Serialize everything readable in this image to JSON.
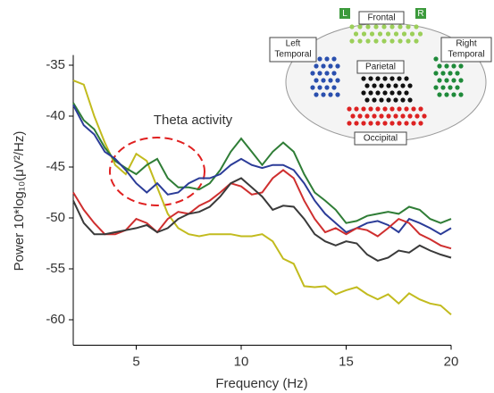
{
  "chart_data": {
    "type": "line",
    "xlabel": "Frequency (Hz)",
    "ylabel": "Power 10*log₁₀(μV²/Hz)",
    "annotation": "Theta activity",
    "x": [
      2,
      2.5,
      3,
      3.5,
      4,
      4.5,
      5,
      5.5,
      6,
      6.5,
      7,
      7.5,
      8,
      8.5,
      9,
      9.5,
      10,
      10.5,
      11,
      11.5,
      12,
      12.5,
      13,
      13.5,
      14,
      14.5,
      15,
      15.5,
      16,
      16.5,
      17,
      17.5,
      18,
      18.5,
      19,
      19.5,
      20
    ],
    "xlim": [
      2,
      20
    ],
    "xticks": [
      5,
      10,
      15,
      20
    ],
    "ylim": [
      -62.5,
      -34
    ],
    "yticks": [
      -35,
      -40,
      -45,
      -50,
      -55,
      -60
    ],
    "series": [
      {
        "color": "#c2bb1e",
        "values": [
          -36.5,
          -36.9,
          -40,
          -42.6,
          -44.8,
          -45.7,
          -43.7,
          -44.4,
          -47,
          -49.6,
          -51,
          -51.6,
          -51.8,
          -51.6,
          -51.6,
          -51.6,
          -51.8,
          -51.8,
          -51.6,
          -52.3,
          -54,
          -54.5,
          -56.7,
          -56.8,
          -56.7,
          -57.5,
          -57.1,
          -56.8,
          -57.5,
          -58,
          -57.5,
          -58.4,
          -57.4,
          -58,
          -58.4,
          -58.6,
          -59.5
        ]
      },
      {
        "color": "#2f7d36",
        "values": [
          -38.7,
          -40.4,
          -41.3,
          -43.1,
          -44.4,
          -45.1,
          -45.7,
          -44.8,
          -44.2,
          -46.1,
          -47,
          -47,
          -47.2,
          -46.6,
          -45.3,
          -43.5,
          -42.2,
          -43.5,
          -44.8,
          -43.5,
          -42.6,
          -43.5,
          -45.7,
          -47.5,
          -48.3,
          -49.2,
          -50.5,
          -50.3,
          -49.8,
          -49.6,
          -49.4,
          -49.6,
          -48.9,
          -49.2,
          -50.1,
          -50.5,
          -50.1
        ]
      },
      {
        "color": "#2b3c98",
        "values": [
          -38.9,
          -40.9,
          -41.8,
          -43.5,
          -44.2,
          -45.3,
          -46.6,
          -47.5,
          -46.6,
          -47.7,
          -47.5,
          -46.6,
          -46.1,
          -46.1,
          -45.7,
          -44.8,
          -44.2,
          -44.8,
          -45.1,
          -44.8,
          -44.8,
          -45.3,
          -46.6,
          -48.3,
          -49.6,
          -50.5,
          -51.4,
          -51,
          -50.5,
          -50.3,
          -50.7,
          -51.4,
          -50.1,
          -50.5,
          -51,
          -51.6,
          -51
        ]
      },
      {
        "color": "#cf2f2f",
        "values": [
          -47.5,
          -49.2,
          -50.5,
          -51.6,
          -51.6,
          -51.2,
          -50.1,
          -50.5,
          -51.4,
          -50.1,
          -49.4,
          -49.6,
          -48.8,
          -48.3,
          -47.5,
          -46.6,
          -46.9,
          -47.7,
          -47.5,
          -46.1,
          -45.3,
          -46.1,
          -48.3,
          -50.1,
          -51.4,
          -51,
          -51.6,
          -51,
          -51.2,
          -51.8,
          -51,
          -50.1,
          -50.5,
          -51.6,
          -52.1,
          -52.7,
          -53
        ]
      },
      {
        "color": "#3a3a3a",
        "values": [
          -48.3,
          -50.5,
          -51.6,
          -51.6,
          -51.4,
          -51.2,
          -51,
          -50.7,
          -51.4,
          -51,
          -50.1,
          -49.6,
          -49.4,
          -48.9,
          -47.9,
          -46.6,
          -46.1,
          -47,
          -47.9,
          -49.2,
          -48.8,
          -48.9,
          -50.1,
          -51.6,
          -52.3,
          -52.7,
          -52.3,
          -52.5,
          -53.6,
          -54.2,
          -53.9,
          -53.2,
          -53.4,
          -52.7,
          -53.2,
          -53.6,
          -53.9
        ]
      }
    ]
  },
  "inset": {
    "left_marker": "L",
    "right_marker": "R",
    "frontal": "Frontal",
    "parietal": "Parietal",
    "occipital": "Occipital",
    "left_temporal": [
      "Left",
      "Temporal"
    ],
    "right_temporal": [
      "Right",
      "Temporal"
    ]
  }
}
